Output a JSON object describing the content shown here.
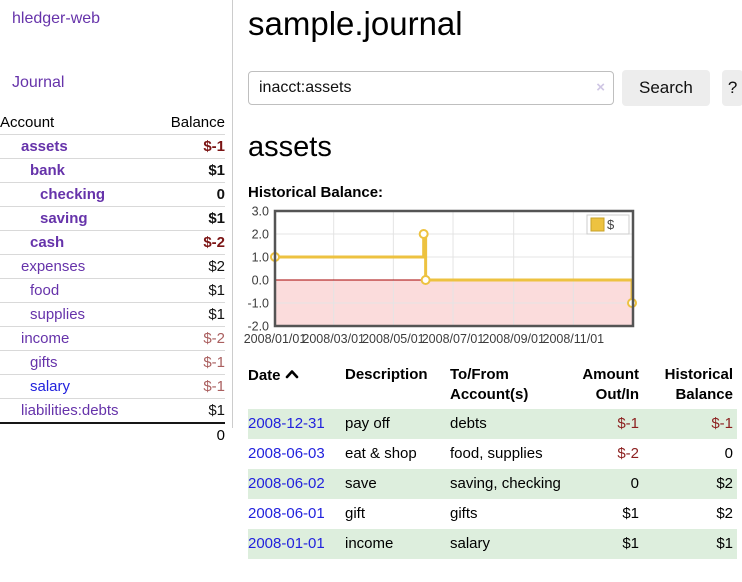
{
  "brand": "hledger-web",
  "nav": {
    "journal": "Journal"
  },
  "sidebar": {
    "headers": {
      "account": "Account",
      "balance": "Balance"
    },
    "accounts": [
      {
        "name": "assets",
        "balance": "$-1"
      },
      {
        "name": "bank",
        "balance": "$1"
      },
      {
        "name": "checking",
        "balance": "0"
      },
      {
        "name": "saving",
        "balance": "$1"
      },
      {
        "name": "cash",
        "balance": "$-2"
      },
      {
        "name": "expenses",
        "balance": "$2"
      },
      {
        "name": "food",
        "balance": "$1"
      },
      {
        "name": "supplies",
        "balance": "$1"
      },
      {
        "name": "income",
        "balance": "$-2"
      },
      {
        "name": "gifts",
        "balance": "$-1"
      },
      {
        "name": "salary",
        "balance": "$-1"
      },
      {
        "name": "liabilities:debts",
        "balance": "$1"
      }
    ],
    "total": "0"
  },
  "header": {
    "title": "sample.journal"
  },
  "search": {
    "value": "inacct:assets",
    "clear": "×",
    "search_button": "Search",
    "help_button": "?"
  },
  "account_page": {
    "heading": "assets",
    "chart_title": "Historical Balance:"
  },
  "chart_data": {
    "type": "line",
    "step": true,
    "title": "Historical Balance:",
    "x_range": [
      "2008-01-01",
      "2009-01-01"
    ],
    "ylim": [
      -2,
      3
    ],
    "y_ticks": [
      "3.0",
      "2.0",
      "1.0",
      "0.0",
      "-1.0",
      "-2.0"
    ],
    "x_ticks": [
      "2008/01/01",
      "2008/03/01",
      "2008/05/01",
      "2008/07/01",
      "2008/09/01",
      "2008/11/01"
    ],
    "series": [
      {
        "name": "$",
        "color": "#edc240",
        "points": [
          [
            "2008-01-01",
            1
          ],
          [
            "2008-06-01",
            2
          ],
          [
            "2008-06-03",
            0
          ],
          [
            "2008-12-31",
            -1
          ]
        ]
      }
    ],
    "colors": {
      "negative_fill": "#fbdcdc",
      "zero_line": "#a40000",
      "grid": "#e4e4e4",
      "frame": "#545454"
    },
    "legend": {
      "label": "$",
      "position": "top-right"
    }
  },
  "register": {
    "headers": {
      "date": "Date",
      "description": "Description",
      "accounts": "To/From Account(s)",
      "amount": "Amount Out/In",
      "balance": "Historical Balance"
    },
    "rows": [
      {
        "date": "2008-12-31",
        "description": "pay off",
        "accounts": "debts",
        "amount": "$-1",
        "balance": "$-1"
      },
      {
        "date": "2008-06-03",
        "description": "eat & shop",
        "accounts": "food, supplies",
        "amount": "$-2",
        "balance": "0"
      },
      {
        "date": "2008-06-02",
        "description": "save",
        "accounts": "saving, checking",
        "amount": "0",
        "balance": "$2"
      },
      {
        "date": "2008-06-01",
        "description": "gift",
        "accounts": "gifts",
        "amount": "$1",
        "balance": "$2"
      },
      {
        "date": "2008-01-01",
        "description": "income",
        "accounts": "salary",
        "amount": "$1",
        "balance": "$1"
      }
    ]
  }
}
